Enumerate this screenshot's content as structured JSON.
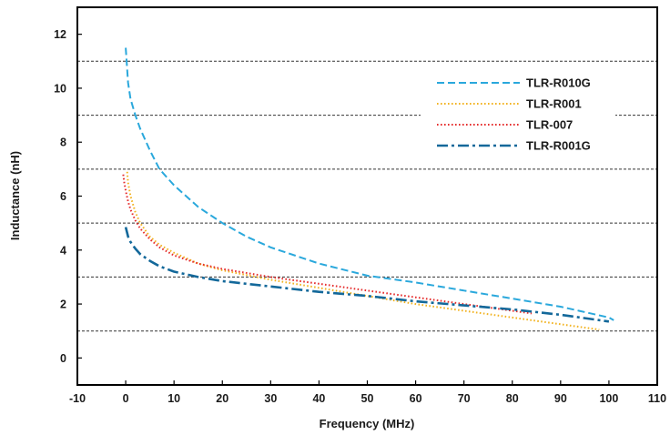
{
  "chart_data": {
    "type": "line",
    "xlabel": "Frequency (MHz)",
    "ylabel": "Inductance (nH)",
    "xlim": [
      -10,
      110
    ],
    "ylim": [
      -1,
      13
    ],
    "xticks": [
      -10,
      0,
      10,
      20,
      30,
      40,
      50,
      60,
      70,
      80,
      90,
      100,
      110
    ],
    "yticks": [
      0,
      2,
      4,
      6,
      8,
      10,
      12
    ],
    "gridlines_y": [
      1,
      3,
      5,
      7,
      9,
      11
    ],
    "grid": "horizontal dashed",
    "legend_placement": "top-right",
    "series": [
      {
        "name": "TLR-R010G",
        "color": "#2aa8dc",
        "style": "dashed",
        "x": [
          0,
          0.2,
          0.5,
          1,
          2,
          3,
          5,
          7,
          10,
          15,
          20,
          25,
          30,
          40,
          50,
          60,
          70,
          80,
          90,
          100,
          101
        ],
        "y": [
          11.5,
          11.0,
          10.2,
          9.6,
          9.0,
          8.5,
          7.7,
          7.0,
          6.4,
          5.6,
          5.0,
          4.5,
          4.1,
          3.5,
          3.05,
          2.8,
          2.5,
          2.2,
          1.9,
          1.5,
          1.4
        ]
      },
      {
        "name": "TLR-R001",
        "color": "#f2b322",
        "style": "dotted",
        "x": [
          0.3,
          0.5,
          1,
          2,
          3,
          5,
          7,
          10,
          15,
          20,
          30,
          40,
          50,
          60,
          70,
          80,
          90,
          98
        ],
        "y": [
          6.9,
          6.5,
          6.0,
          5.4,
          5.0,
          4.5,
          4.2,
          3.9,
          3.5,
          3.25,
          2.9,
          2.6,
          2.3,
          2.0,
          1.75,
          1.5,
          1.25,
          1.05
        ]
      },
      {
        "name": "TLR-007",
        "color": "#e52d2d",
        "style": "dotted",
        "x": [
          -0.5,
          -0.3,
          0,
          0.5,
          1,
          2,
          3,
          5,
          7,
          10,
          15,
          20,
          30,
          40,
          50,
          60,
          70,
          80,
          84
        ],
        "y": [
          6.8,
          6.5,
          6.2,
          5.8,
          5.5,
          5.1,
          4.8,
          4.4,
          4.1,
          3.8,
          3.5,
          3.3,
          3.0,
          2.75,
          2.5,
          2.25,
          2.0,
          1.75,
          1.65
        ]
      },
      {
        "name": "TLR-R001G",
        "color": "#13689a",
        "style": "dashdot",
        "x": [
          0,
          0.5,
          1,
          2,
          3,
          5,
          7,
          10,
          15,
          20,
          30,
          40,
          50,
          60,
          70,
          80,
          90,
          100
        ],
        "y": [
          4.85,
          4.5,
          4.3,
          4.05,
          3.85,
          3.6,
          3.4,
          3.2,
          3.0,
          2.85,
          2.65,
          2.45,
          2.3,
          2.1,
          1.95,
          1.8,
          1.6,
          1.35
        ]
      }
    ]
  }
}
